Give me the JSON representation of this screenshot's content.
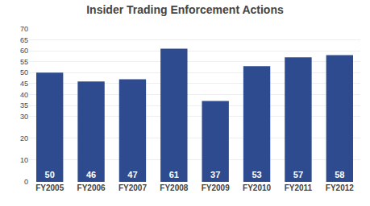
{
  "chart_data": {
    "type": "bar",
    "title": "Insider Trading Enforcement Actions",
    "categories": [
      "FY2005",
      "FY2006",
      "FY2007",
      "FY2008",
      "FY2009",
      "FY2010",
      "FY2011",
      "FY2012"
    ],
    "values": [
      50,
      46,
      47,
      61,
      37,
      53,
      57,
      58
    ],
    "color": "#2d4b8e",
    "ylim": [
      0,
      70
    ],
    "yticks": [
      0,
      10,
      20,
      30,
      35,
      40,
      45,
      50,
      55,
      60,
      65,
      70
    ],
    "grid": true,
    "data_labels": true
  }
}
